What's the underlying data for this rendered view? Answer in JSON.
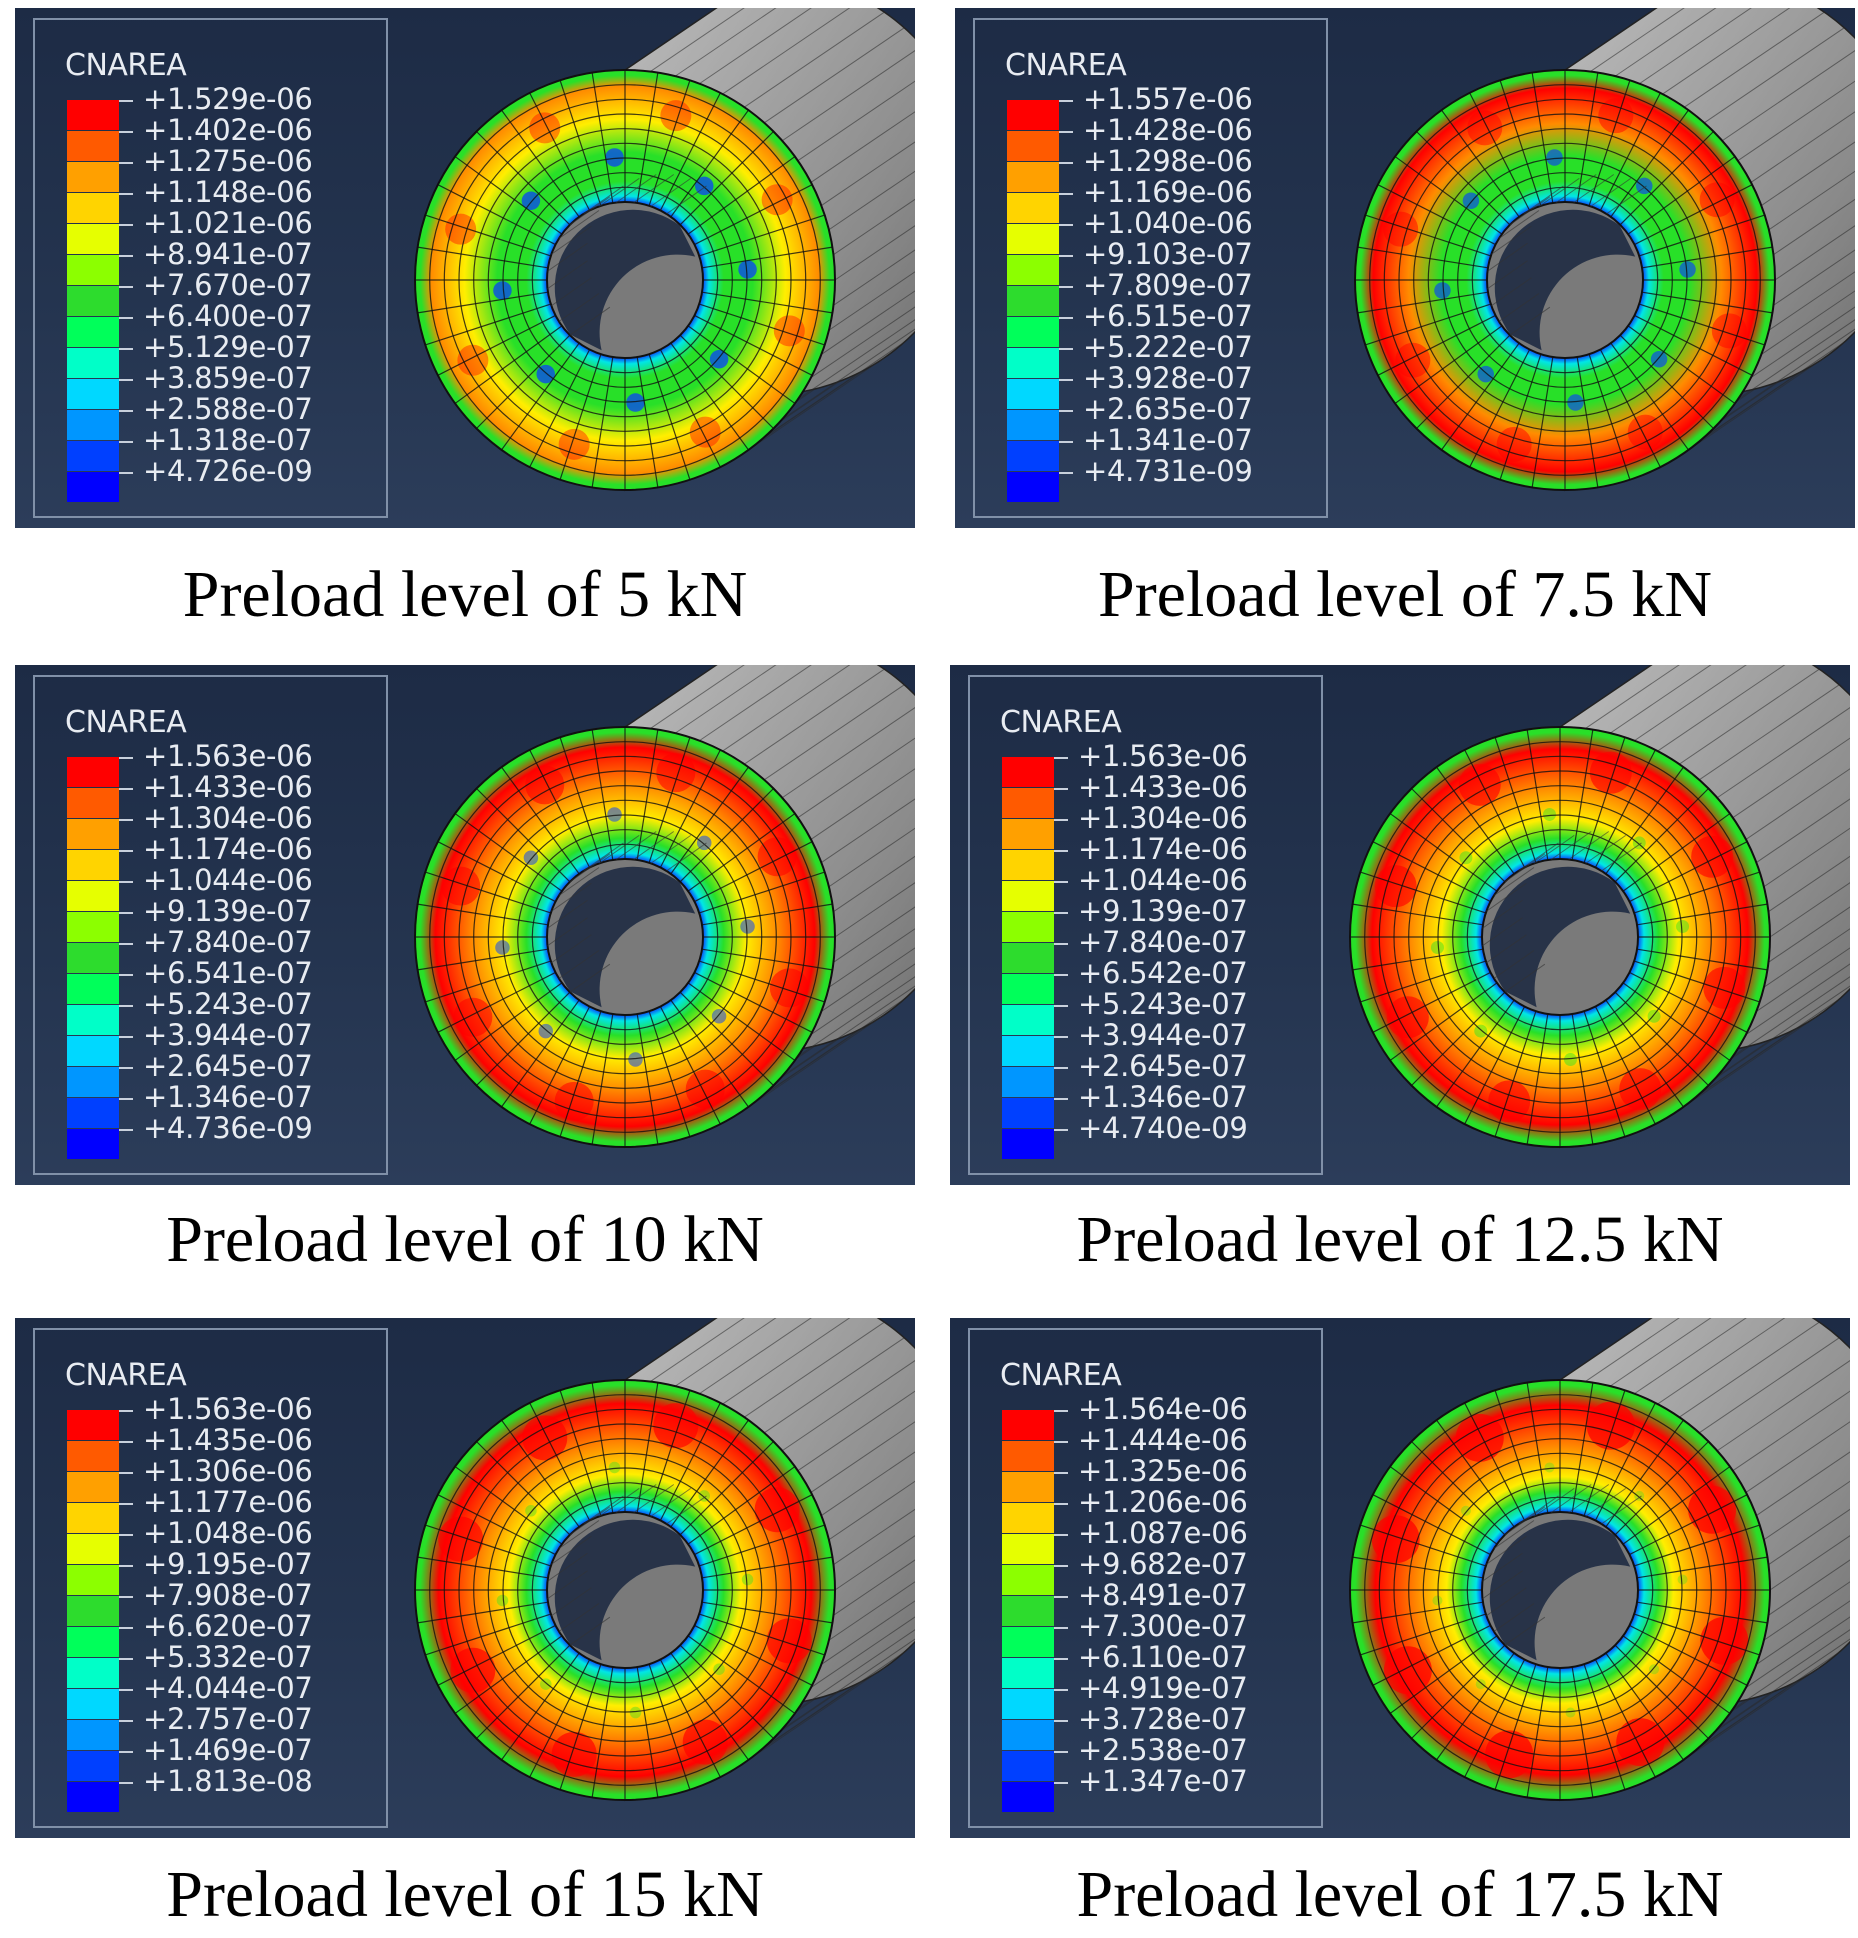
{
  "figure": {
    "legend_title": "CNAREA",
    "colors": [
      "#ff0000",
      "#ff5a00",
      "#ffa000",
      "#ffd400",
      "#e6ff00",
      "#8cff00",
      "#2ddc2d",
      "#00ff5a",
      "#00ffc8",
      "#00d8ff",
      "#0096ff",
      "#0040ff",
      "#0000ff"
    ],
    "colormap": {
      "red": "#ff0000",
      "orange": "#ff8c00",
      "yellow": "#ffee00",
      "green": "#28e028",
      "cyan": "#00e6e6",
      "blue": "#0a3cff"
    },
    "panels": [
      {
        "caption": "Preload level of 5 kN",
        "legend_values": [
          "+1.529e-06",
          "+1.402e-06",
          "+1.275e-06",
          "+1.148e-06",
          "+1.021e-06",
          "+8.941e-07",
          "+7.670e-07",
          "+6.400e-07",
          "+5.129e-07",
          "+3.859e-07",
          "+2.588e-07",
          "+1.318e-07",
          "+4.726e-09"
        ],
        "preload_kN": 5
      },
      {
        "caption": "Preload level of 7.5 kN",
        "legend_values": [
          "+1.557e-06",
          "+1.428e-06",
          "+1.298e-06",
          "+1.169e-06",
          "+1.040e-06",
          "+9.103e-07",
          "+7.809e-07",
          "+6.515e-07",
          "+5.222e-07",
          "+3.928e-07",
          "+2.635e-07",
          "+1.341e-07",
          "+4.731e-09"
        ],
        "preload_kN": 7.5
      },
      {
        "caption": "Preload level of 10 kN",
        "legend_values": [
          "+1.563e-06",
          "+1.433e-06",
          "+1.304e-06",
          "+1.174e-06",
          "+1.044e-06",
          "+9.139e-07",
          "+7.840e-07",
          "+6.541e-07",
          "+5.243e-07",
          "+3.944e-07",
          "+2.645e-07",
          "+1.346e-07",
          "+4.736e-09"
        ],
        "preload_kN": 10
      },
      {
        "caption": "Preload level of 12.5 kN",
        "legend_values": [
          "+1.563e-06",
          "+1.433e-06",
          "+1.304e-06",
          "+1.174e-06",
          "+1.044e-06",
          "+9.139e-07",
          "+7.840e-07",
          "+6.542e-07",
          "+5.243e-07",
          "+3.944e-07",
          "+2.645e-07",
          "+1.346e-07",
          "+4.740e-09"
        ],
        "preload_kN": 12.5
      },
      {
        "caption": "Preload level of 15 kN",
        "legend_values": [
          "+1.563e-06",
          "+1.435e-06",
          "+1.306e-06",
          "+1.177e-06",
          "+1.048e-06",
          "+9.195e-07",
          "+7.908e-07",
          "+6.620e-07",
          "+5.332e-07",
          "+4.044e-07",
          "+2.757e-07",
          "+1.469e-07",
          "+1.813e-08"
        ],
        "preload_kN": 15
      },
      {
        "caption": "Preload level of 17.5 kN",
        "legend_values": [
          "+1.564e-06",
          "+1.444e-06",
          "+1.325e-06",
          "+1.206e-06",
          "+1.087e-06",
          "+9.682e-07",
          "+8.491e-07",
          "+7.300e-07",
          "+6.110e-07",
          "+4.919e-07",
          "+3.728e-07",
          "+2.538e-07",
          "+1.347e-07"
        ],
        "preload_kN": 17.5
      }
    ]
  }
}
